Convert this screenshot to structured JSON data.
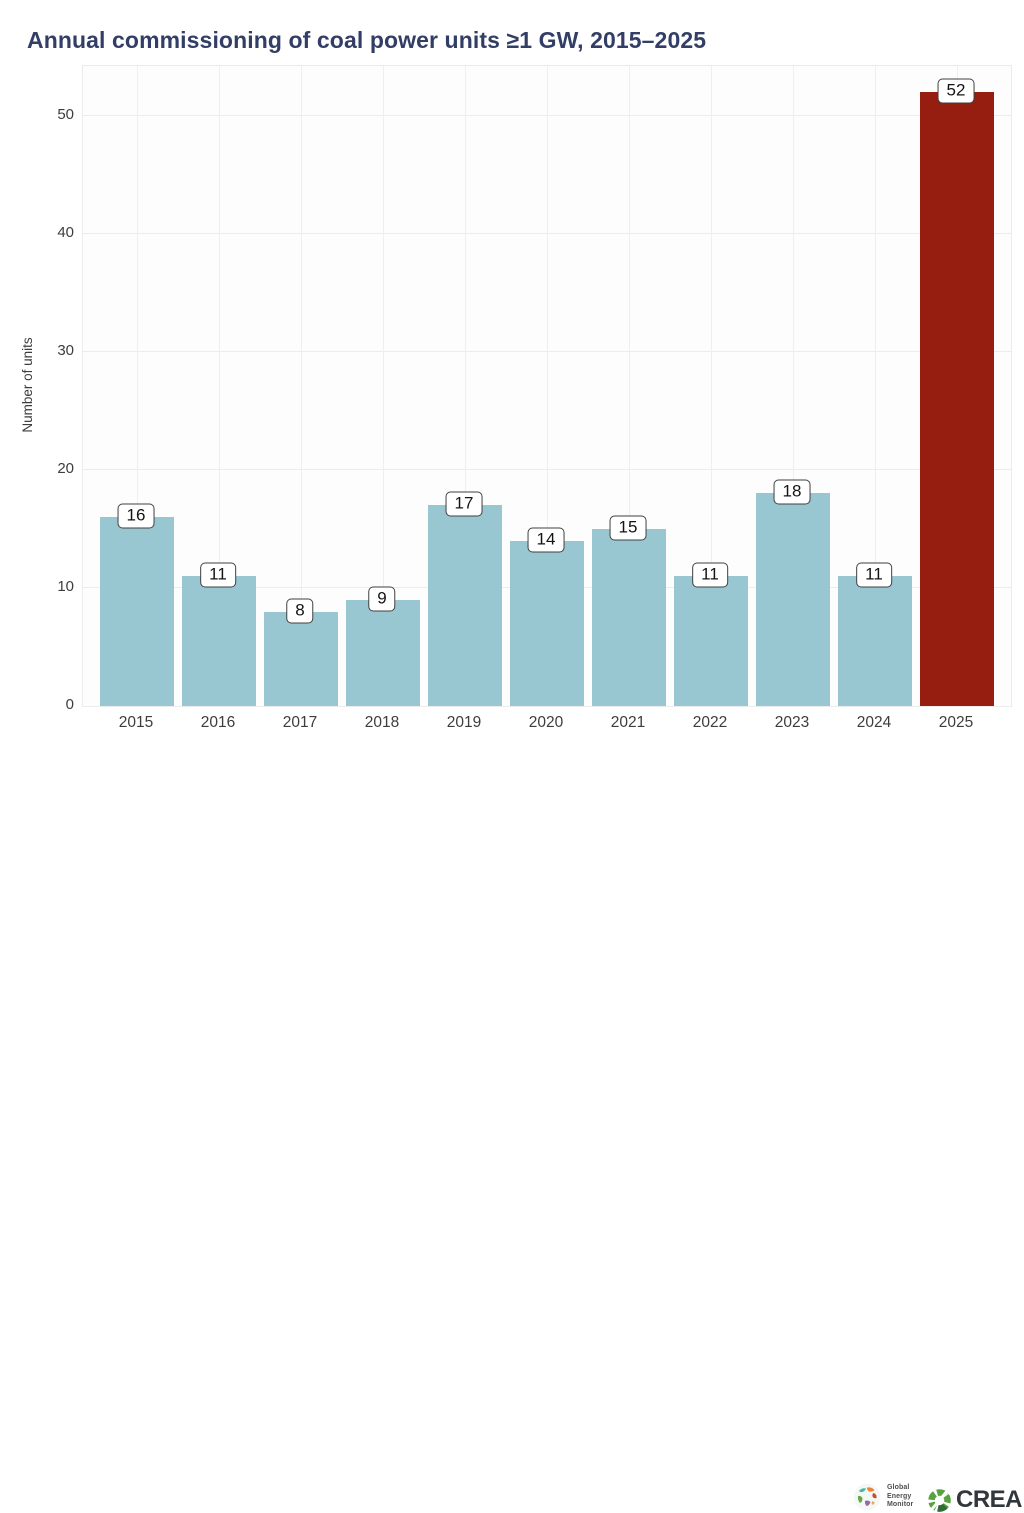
{
  "title": "Annual commissioning of coal power units ≥1 GW, 2015–2025",
  "chart_data": {
    "type": "bar",
    "title": "Annual commissioning of coal power units ≥1 GW, 2015–2025",
    "categories": [
      "2015",
      "2016",
      "2017",
      "2018",
      "2019",
      "2020",
      "2021",
      "2022",
      "2023",
      "2024",
      "2025"
    ],
    "values": [
      16,
      11,
      8,
      9,
      17,
      14,
      15,
      11,
      18,
      11,
      52
    ],
    "data_labels": [
      "16",
      "11",
      "8",
      "9",
      "17",
      "14",
      "15",
      "11",
      "18",
      "11",
      "52"
    ],
    "bar_colors": [
      "#98c7d1",
      "#98c7d1",
      "#98c7d1",
      "#98c7d1",
      "#98c7d1",
      "#98c7d1",
      "#98c7d1",
      "#98c7d1",
      "#98c7d1",
      "#98c7d1",
      "#951e10"
    ],
    "default_bar_color": "#98c7d1",
    "highlight_bar": {
      "category": "2025",
      "color": "#951e10"
    },
    "xlabel": "",
    "ylabel": "Number of units",
    "ylim": [
      0,
      54.2
    ],
    "yticks": [
      0,
      10,
      20,
      30,
      40,
      50
    ],
    "grid": "horizontal and vertical",
    "gridline_color": "#ececec",
    "legend_position": "none"
  },
  "colors": {
    "title_text": "#333e66",
    "axis_text": "#3d3d3d",
    "value_label_border": "#3f3f3f",
    "value_label_background": "#ffffff",
    "panel_border": "#ebebeb"
  },
  "footer": {
    "gem_logo": {
      "lines": [
        "Global",
        "Energy",
        "Monitor"
      ]
    },
    "crea_logo": {
      "label": "CREA",
      "green_dark": "#2f6b34",
      "green_light": "#57a33f"
    }
  }
}
